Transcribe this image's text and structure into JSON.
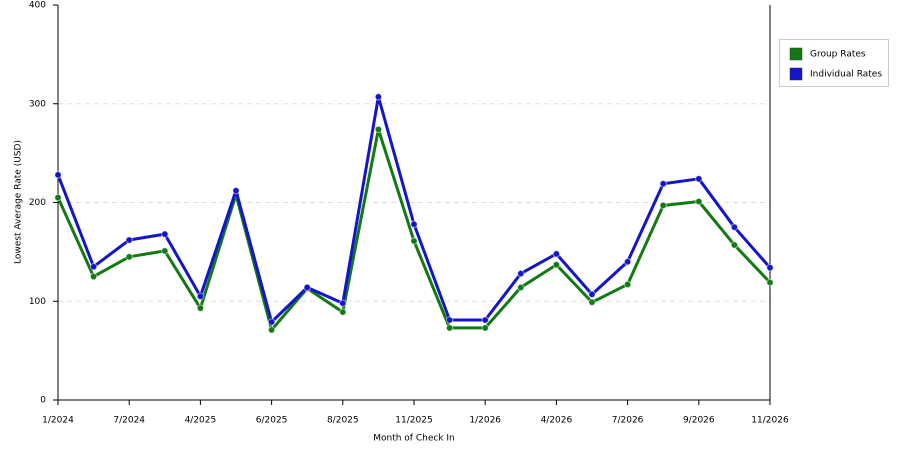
{
  "chart_data": {
    "type": "line",
    "x_label": "Month of Check In",
    "y_label": "Lowest Average Rate (USD)",
    "categories": [
      "1/2024",
      null,
      "7/2024",
      null,
      "4/2025",
      null,
      "6/2025",
      null,
      "8/2025",
      null,
      "11/2025",
      null,
      "1/2026",
      null,
      "4/2026",
      null,
      "7/2026",
      null,
      "9/2026",
      null,
      "11/2026"
    ],
    "series": [
      {
        "name": "Group Rates",
        "color": "#127a12",
        "values": [
          205,
          125,
          145,
          151,
          93,
          208,
          71,
          113,
          89,
          274,
          161,
          73,
          73,
          114,
          137,
          99,
          117,
          197,
          201,
          157,
          119
        ]
      },
      {
        "name": "Individual Rates",
        "color": "#1414cc",
        "values": [
          228,
          135,
          162,
          168,
          105,
          212,
          79,
          114,
          98,
          307,
          178,
          81,
          81,
          128,
          148,
          107,
          140,
          219,
          224,
          175,
          134
        ]
      }
    ],
    "ylim": [
      0,
      400
    ],
    "yticks": [
      0,
      100,
      200,
      300,
      400
    ],
    "grid": true,
    "legend": "right"
  }
}
